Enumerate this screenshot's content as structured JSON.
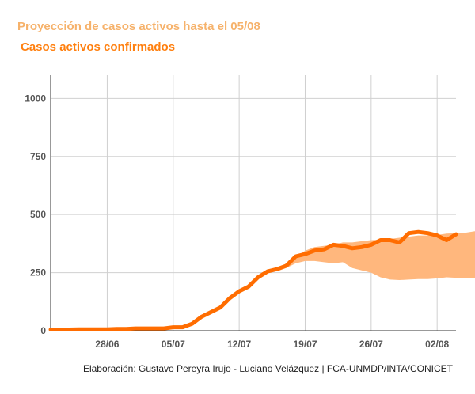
{
  "title": "Proyección de casos activos hasta el 05/08",
  "subtitle": "Casos activos confirmados",
  "credit": "Elaboración: Gustavo Pereyra Irujo - Luciano Velázquez | FCA-UNMDP/INTA/CONICET",
  "colors": {
    "title": "#f6b26b",
    "line": "#ff6d01",
    "band": "#ffb77d",
    "grid": "#d0d0d0",
    "axis": "#555555"
  },
  "chart_data": {
    "type": "line",
    "title": "Proyección de casos activos hasta el 05/08",
    "subtitle": "Casos activos confirmados",
    "x_start": "2020-06-22",
    "x_ticks": [
      "28/06",
      "05/07",
      "12/07",
      "19/07",
      "26/07",
      "02/08"
    ],
    "y_ticks": [
      0,
      250,
      500,
      750,
      1000
    ],
    "ylim": [
      0,
      1100
    ],
    "grid": true,
    "series": [
      {
        "values": [
          5,
          5,
          5,
          6,
          6,
          6,
          6,
          8,
          8,
          10,
          10,
          10,
          10,
          15,
          15,
          30,
          60,
          80,
          100,
          140,
          170,
          190,
          230,
          255,
          265,
          280,
          320,
          330,
          345,
          350,
          370,
          365,
          355,
          360,
          370,
          390,
          390,
          380,
          420,
          425,
          420,
          410,
          390,
          415
        ]
      }
    ],
    "band": {
      "x_start_index": 24,
      "lower": [
        255,
        270,
        290,
        300,
        300,
        295,
        290,
        295,
        270,
        260,
        250,
        230,
        220,
        218,
        220,
        222,
        222,
        225,
        230,
        228,
        226,
        228,
        226,
        228
      ],
      "upper": [
        265,
        285,
        315,
        345,
        360,
        365,
        370,
        380,
        380,
        385,
        390,
        392,
        395,
        400,
        405,
        410,
        410,
        412,
        418,
        420,
        422,
        428,
        435,
        438
      ]
    }
  }
}
